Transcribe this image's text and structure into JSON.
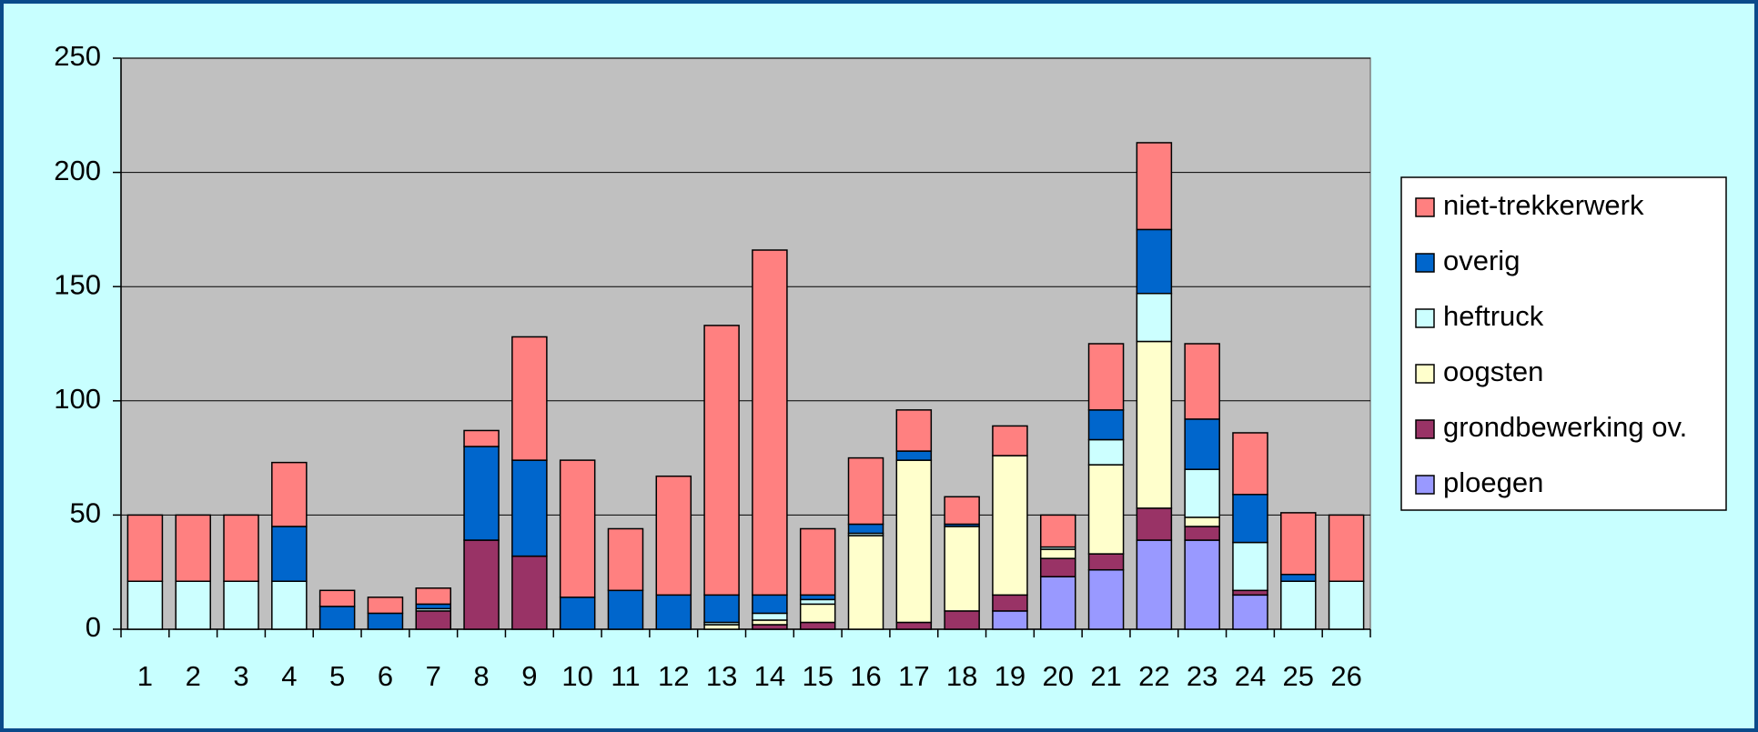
{
  "chart_data": {
    "type": "bar",
    "stacked": true,
    "categories": [
      "1",
      "2",
      "3",
      "4",
      "5",
      "6",
      "7",
      "8",
      "9",
      "10",
      "11",
      "12",
      "13",
      "14",
      "15",
      "16",
      "17",
      "18",
      "19",
      "20",
      "21",
      "22",
      "23",
      "24",
      "25",
      "26"
    ],
    "series": [
      {
        "name": "ploegen",
        "color": "#9999ff",
        "values": [
          0,
          0,
          0,
          0,
          0,
          0,
          0,
          0,
          0,
          0,
          0,
          0,
          0,
          0,
          0,
          0,
          0,
          0,
          8,
          23,
          26,
          39,
          39,
          15,
          0,
          0
        ]
      },
      {
        "name": "grondbewerking ov.",
        "color": "#993366",
        "values": [
          0,
          0,
          0,
          0,
          0,
          0,
          8,
          39,
          32,
          0,
          0,
          0,
          0,
          2,
          3,
          0,
          3,
          8,
          7,
          8,
          7,
          14,
          6,
          2,
          0,
          0
        ]
      },
      {
        "name": "oogsten",
        "color": "#ffffcc",
        "values": [
          0,
          0,
          0,
          0,
          0,
          0,
          0,
          0,
          0,
          0,
          0,
          0,
          2,
          2,
          8,
          41,
          71,
          37,
          61,
          4,
          39,
          73,
          4,
          0,
          0,
          0
        ]
      },
      {
        "name": "heftruck",
        "color": "#ccffff",
        "values": [
          21,
          21,
          21,
          21,
          0,
          0,
          1,
          0,
          0,
          0,
          0,
          0,
          1,
          3,
          2,
          1,
          0,
          0,
          0,
          1,
          11,
          21,
          21,
          21,
          21,
          21
        ]
      },
      {
        "name": "overig",
        "color": "#0066cc",
        "values": [
          0,
          0,
          0,
          24,
          10,
          7,
          2,
          41,
          42,
          14,
          17,
          15,
          12,
          8,
          2,
          4,
          4,
          1,
          0,
          0,
          13,
          28,
          22,
          21,
          3,
          0
        ]
      },
      {
        "name": "niet-trekkerwerk",
        "color": "#ff8080",
        "values": [
          29,
          29,
          29,
          28,
          7,
          7,
          7,
          7,
          54,
          60,
          27,
          52,
          118,
          151,
          29,
          29,
          18,
          12,
          13,
          14,
          29,
          38,
          33,
          27,
          27,
          29
        ]
      }
    ],
    "ylim": [
      0,
      250
    ],
    "yticks": [
      0,
      50,
      100,
      150,
      200,
      250
    ],
    "grid": true,
    "legend": "right"
  }
}
